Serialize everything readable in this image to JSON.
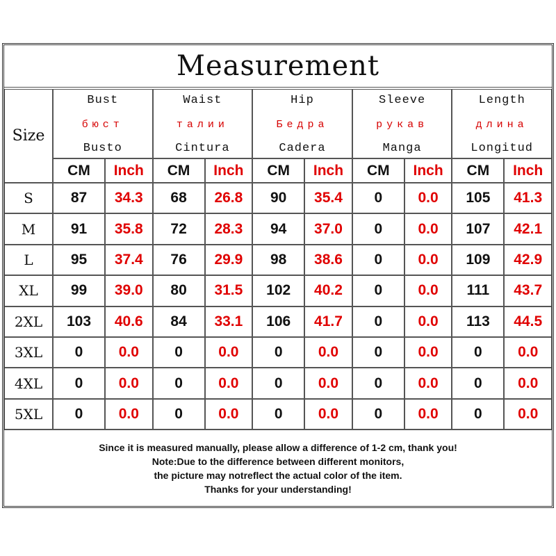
{
  "title": "Measurement",
  "size_label": "Size",
  "columns": [
    {
      "en": "Bust",
      "ru": "бюст",
      "es": "Busto"
    },
    {
      "en": "Waist",
      "ru": "талии",
      "es": "Cintura"
    },
    {
      "en": "Hip",
      "ru": "Бедра",
      "es": "Cadera"
    },
    {
      "en": "Sleeve",
      "ru": "рукав",
      "es": "Manga"
    },
    {
      "en": "Length",
      "ru": "длина",
      "es": "Longitud"
    }
  ],
  "units": {
    "cm": "CM",
    "inch": "Inch"
  },
  "rows": [
    {
      "size": "S",
      "values": [
        [
          "87",
          "34.3"
        ],
        [
          "68",
          "26.8"
        ],
        [
          "90",
          "35.4"
        ],
        [
          "0",
          "0.0"
        ],
        [
          "105",
          "41.3"
        ]
      ]
    },
    {
      "size": "M",
      "values": [
        [
          "91",
          "35.8"
        ],
        [
          "72",
          "28.3"
        ],
        [
          "94",
          "37.0"
        ],
        [
          "0",
          "0.0"
        ],
        [
          "107",
          "42.1"
        ]
      ]
    },
    {
      "size": "L",
      "values": [
        [
          "95",
          "37.4"
        ],
        [
          "76",
          "29.9"
        ],
        [
          "98",
          "38.6"
        ],
        [
          "0",
          "0.0"
        ],
        [
          "109",
          "42.9"
        ]
      ]
    },
    {
      "size": "XL",
      "values": [
        [
          "99",
          "39.0"
        ],
        [
          "80",
          "31.5"
        ],
        [
          "102",
          "40.2"
        ],
        [
          "0",
          "0.0"
        ],
        [
          "111",
          "43.7"
        ]
      ]
    },
    {
      "size": "2XL",
      "values": [
        [
          "103",
          "40.6"
        ],
        [
          "84",
          "33.1"
        ],
        [
          "106",
          "41.7"
        ],
        [
          "0",
          "0.0"
        ],
        [
          "113",
          "44.5"
        ]
      ]
    },
    {
      "size": "3XL",
      "values": [
        [
          "0",
          "0.0"
        ],
        [
          "0",
          "0.0"
        ],
        [
          "0",
          "0.0"
        ],
        [
          "0",
          "0.0"
        ],
        [
          "0",
          "0.0"
        ]
      ]
    },
    {
      "size": "4XL",
      "values": [
        [
          "0",
          "0.0"
        ],
        [
          "0",
          "0.0"
        ],
        [
          "0",
          "0.0"
        ],
        [
          "0",
          "0.0"
        ],
        [
          "0",
          "0.0"
        ]
      ]
    },
    {
      "size": "5XL",
      "values": [
        [
          "0",
          "0.0"
        ],
        [
          "0",
          "0.0"
        ],
        [
          "0",
          "0.0"
        ],
        [
          "0",
          "0.0"
        ],
        [
          "0",
          "0.0"
        ]
      ]
    }
  ],
  "notes": [
    "Since it is measured manually, please allow a difference of 1-2 cm, thank you!",
    "Note:Due to the difference between different monitors,",
    "the picture may notreflect the actual color of the item.",
    "Thanks for your understanding!"
  ],
  "colors": {
    "cm_text": "#111111",
    "inch_text": "#e00000",
    "russian_text": "#d60000",
    "border": "#555555"
  }
}
